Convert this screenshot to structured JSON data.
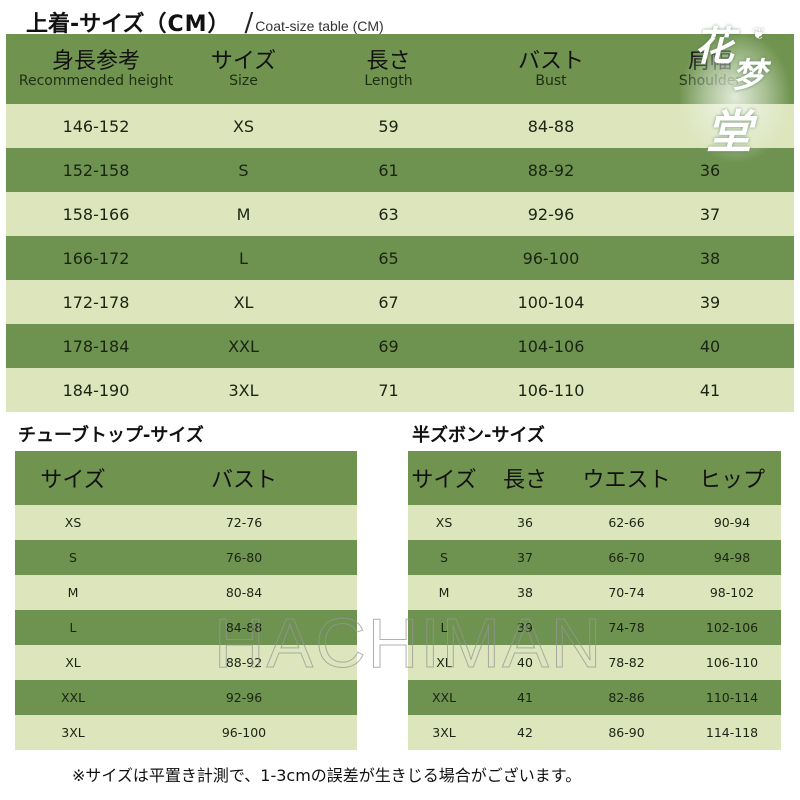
{
  "title": {
    "main_jp": "上着-サイズ",
    "unit": "（CM）",
    "slash": "/",
    "main_en": "Coat-size table (CM)"
  },
  "coat_table": {
    "headers": [
      {
        "jp": "身長参考",
        "en": "Recommended height"
      },
      {
        "jp": "サイズ",
        "en": "Size"
      },
      {
        "jp": "長さ",
        "en": "Length"
      },
      {
        "jp": "バスト",
        "en": "Bust"
      },
      {
        "jp": "肩幅",
        "en": "Shoulder"
      }
    ],
    "rows": [
      {
        "height": "146-152",
        "size": "XS",
        "length": "59",
        "bust": "84-88",
        "shoulder": ""
      },
      {
        "height": "152-158",
        "size": "S",
        "length": "61",
        "bust": "88-92",
        "shoulder": "36"
      },
      {
        "height": "158-166",
        "size": "M",
        "length": "63",
        "bust": "92-96",
        "shoulder": "37"
      },
      {
        "height": "166-172",
        "size": "L",
        "length": "65",
        "bust": "96-100",
        "shoulder": "38"
      },
      {
        "height": "172-178",
        "size": "XL",
        "length": "67",
        "bust": "100-104",
        "shoulder": "39"
      },
      {
        "height": "178-184",
        "size": "XXL",
        "length": "69",
        "bust": "104-106",
        "shoulder": "40"
      },
      {
        "height": "184-190",
        "size": "3XL",
        "length": "71",
        "bust": "106-110",
        "shoulder": "41"
      }
    ]
  },
  "tube_top": {
    "title": "チューブトップ-サイズ",
    "headers": [
      "サイズ",
      "バスト"
    ],
    "rows": [
      {
        "size": "XS",
        "bust": "72-76"
      },
      {
        "size": "S",
        "bust": "76-80"
      },
      {
        "size": "M",
        "bust": "80-84"
      },
      {
        "size": "L",
        "bust": "84-88"
      },
      {
        "size": "XL",
        "bust": "88-92"
      },
      {
        "size": "XXL",
        "bust": "92-96"
      },
      {
        "size": "3XL",
        "bust": "96-100"
      }
    ]
  },
  "shorts": {
    "title": "半ズボン-サイズ",
    "headers": [
      "サイズ",
      "長さ",
      "ウエスト",
      "ヒップ"
    ],
    "rows": [
      {
        "size": "XS",
        "length": "36",
        "waist": "62-66",
        "hip": "90-94"
      },
      {
        "size": "S",
        "length": "37",
        "waist": "66-70",
        "hip": "94-98"
      },
      {
        "size": "M",
        "length": "38",
        "waist": "70-74",
        "hip": "98-102"
      },
      {
        "size": "L",
        "length": "39",
        "waist": "74-78",
        "hip": "102-106"
      },
      {
        "size": "XL",
        "length": "40",
        "waist": "78-82",
        "hip": "106-110"
      },
      {
        "size": "XXL",
        "length": "41",
        "waist": "82-86",
        "hip": "110-114"
      },
      {
        "size": "3XL",
        "length": "42",
        "waist": "86-90",
        "hip": "114-118"
      }
    ]
  },
  "footnote": "※サイズは平置き計測で、1-3cmの誤差が生きじる場合がございます。",
  "watermarks": {
    "center_text": "HACHIMAN",
    "logo_chars": [
      "花",
      "梦",
      "堂"
    ],
    "logo_butterfly": "❦"
  },
  "colors": {
    "dark_row": "#6e9350",
    "light_row": "#dde5bd",
    "header": "#709450"
  }
}
